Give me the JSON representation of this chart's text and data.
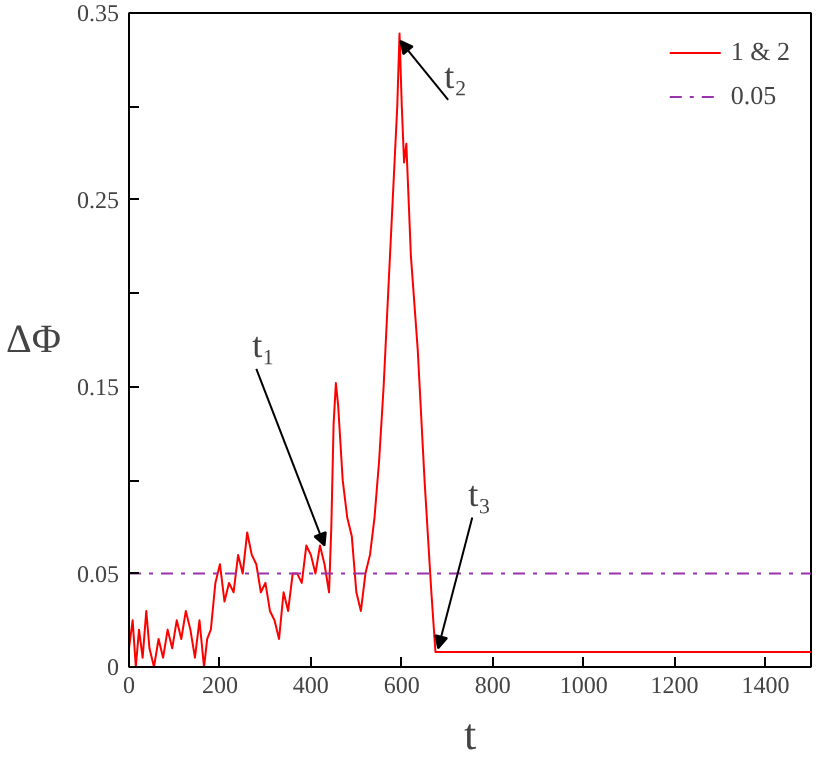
{
  "chart_data": {
    "type": "line",
    "xlabel": "t",
    "ylabel": "ΔΦ",
    "x": [
      0,
      8,
      15,
      22,
      30,
      38,
      45,
      55,
      65,
      75,
      85,
      95,
      105,
      115,
      125,
      135,
      145,
      155,
      165,
      172,
      180,
      190,
      200,
      210,
      220,
      230,
      240,
      250,
      260,
      270,
      280,
      290,
      300,
      310,
      320,
      330,
      340,
      350,
      360,
      370,
      380,
      390,
      400,
      410,
      420,
      430,
      440,
      445,
      450,
      455,
      460,
      465,
      470,
      480,
      490,
      500,
      510,
      520,
      530,
      540,
      550,
      560,
      570,
      580,
      590,
      595,
      600,
      605,
      610,
      615,
      620,
      635,
      650,
      665,
      674,
      1500
    ],
    "series": [
      {
        "name": "1 & 2",
        "color": "#ff0000",
        "values": [
          0.01,
          0.025,
          0.0,
          0.02,
          0.005,
          0.03,
          0.01,
          0.0,
          0.015,
          0.005,
          0.02,
          0.01,
          0.025,
          0.015,
          0.03,
          0.02,
          0.005,
          0.025,
          0.0,
          0.015,
          0.02,
          0.045,
          0.055,
          0.035,
          0.045,
          0.04,
          0.06,
          0.05,
          0.072,
          0.06,
          0.055,
          0.04,
          0.045,
          0.03,
          0.025,
          0.015,
          0.04,
          0.03,
          0.05,
          0.05,
          0.045,
          0.065,
          0.06,
          0.05,
          0.065,
          0.055,
          0.04,
          0.075,
          0.13,
          0.152,
          0.14,
          0.12,
          0.1,
          0.08,
          0.07,
          0.04,
          0.03,
          0.05,
          0.06,
          0.08,
          0.11,
          0.15,
          0.2,
          0.25,
          0.3,
          0.339,
          0.3,
          0.27,
          0.28,
          0.25,
          0.22,
          0.17,
          0.1,
          0.04,
          0.008,
          0.008
        ]
      }
    ],
    "xlim": [
      0,
      1500
    ],
    "ylim": [
      0,
      0.35
    ],
    "xticks": [
      0,
      200,
      400,
      600,
      800,
      1000,
      1200,
      1400
    ],
    "yticks": [
      0,
      0.05,
      {
        "value": 0.1,
        "label": null
      },
      0.15,
      {
        "value": 0.2,
        "label": null
      },
      0.25,
      {
        "value": 0.3,
        "label": null
      },
      0.35
    ],
    "ref_lines": [
      {
        "axis": "y",
        "value": 0.05,
        "label": "0.05",
        "color": "#9933aa",
        "line_style": "dashdot"
      }
    ],
    "annotations": [
      {
        "text": "t₁",
        "x": 430,
        "y": 0.065
      },
      {
        "text": "t₂",
        "x": 597,
        "y": 0.335
      },
      {
        "text": "t₃",
        "x": 680,
        "y": 0.01
      }
    ],
    "legend": "top right",
    "grid": false,
    "line_style": "solid",
    "marker": "none"
  }
}
